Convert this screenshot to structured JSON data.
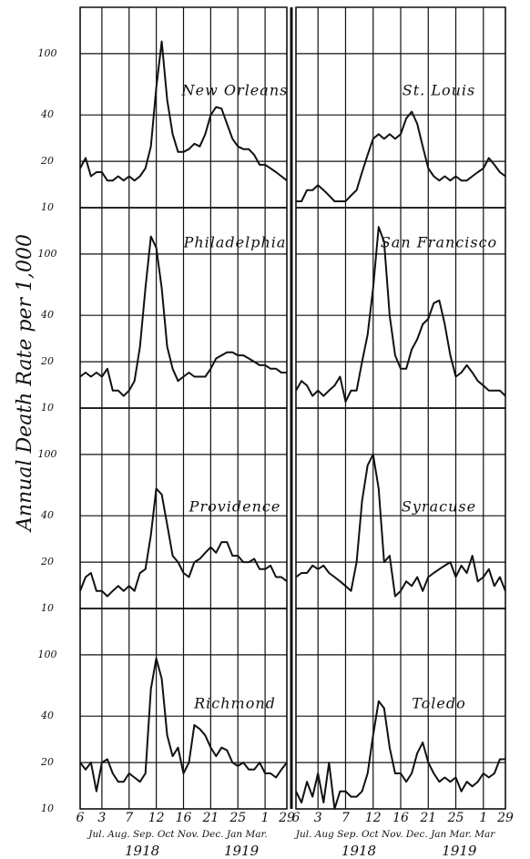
{
  "figure": {
    "ylabel": "Annual Death Rate per 1,000",
    "x_month_labels": [
      "Jul. Aug. Sep. Oct Nov. Dec. Jan Mar.",
      "Jul. Aug Sep. Oct Nov. Dec. Jan Mar. Mar"
    ],
    "years": [
      [
        "1918",
        "1919"
      ],
      [
        "1918",
        "1919"
      ]
    ]
  },
  "chart_data": [
    {
      "type": "line",
      "title": "New Orleans",
      "log_scale": true,
      "x": [
        0,
        1,
        2,
        3,
        4,
        5,
        6,
        7,
        8,
        9,
        10,
        11,
        12,
        13,
        14,
        15,
        16,
        17,
        18,
        19,
        20,
        21,
        22,
        23,
        24,
        25,
        26,
        27,
        28,
        29,
        30,
        31,
        32,
        33,
        34,
        35,
        36,
        37,
        38
      ],
      "values": [
        18,
        21,
        16,
        17,
        17,
        15,
        15,
        16,
        15,
        16,
        15,
        16,
        18,
        25,
        60,
        120,
        50,
        30,
        23,
        23,
        24,
        26,
        25,
        30,
        40,
        45,
        44,
        35,
        28,
        25,
        24,
        24,
        22,
        19,
        19,
        18,
        17,
        16,
        15
      ],
      "xlim": [
        0,
        38
      ],
      "ylim": [
        10,
        200
      ],
      "yticks": [
        10,
        20,
        40,
        100
      ],
      "xticks": [
        {
          "value": 0,
          "label": "6"
        },
        {
          "value": 4,
          "label": "3"
        },
        {
          "value": 9,
          "label": "7"
        },
        {
          "value": 14,
          "label": "12"
        },
        {
          "value": 19,
          "label": "16"
        },
        {
          "value": 24,
          "label": "21"
        },
        {
          "value": 29,
          "label": "25"
        },
        {
          "value": 34,
          "label": "1"
        },
        {
          "value": 38,
          "label": "29"
        }
      ]
    },
    {
      "type": "line",
      "title": "St. Louis",
      "log_scale": true,
      "x": [
        0,
        1,
        2,
        3,
        4,
        5,
        6,
        7,
        8,
        9,
        10,
        11,
        12,
        13,
        14,
        15,
        16,
        17,
        18,
        19,
        20,
        21,
        22,
        23,
        24,
        25,
        26,
        27,
        28,
        29,
        30,
        31,
        32,
        33,
        34,
        35,
        36,
        37,
        38
      ],
      "values": [
        11,
        11,
        13,
        13,
        14,
        13,
        12,
        11,
        11,
        11,
        12,
        13,
        17,
        22,
        28,
        30,
        28,
        30,
        28,
        30,
        38,
        42,
        35,
        25,
        18,
        16,
        15,
        16,
        15,
        16,
        15,
        15,
        16,
        17,
        18,
        21,
        19,
        17,
        16
      ],
      "xlim": [
        0,
        38
      ],
      "ylim": [
        10,
        200
      ],
      "yticks": [
        10,
        20,
        40,
        100
      ],
      "xticks": [
        {
          "value": 0,
          "label": "6"
        },
        {
          "value": 4,
          "label": "3"
        },
        {
          "value": 9,
          "label": "7"
        },
        {
          "value": 14,
          "label": "12"
        },
        {
          "value": 19,
          "label": "16"
        },
        {
          "value": 24,
          "label": "21"
        },
        {
          "value": 29,
          "label": "25"
        },
        {
          "value": 34,
          "label": "1"
        },
        {
          "value": 38,
          "label": "29"
        }
      ]
    },
    {
      "type": "line",
      "title": "Philadelphia",
      "log_scale": true,
      "x": [
        0,
        1,
        2,
        3,
        4,
        5,
        6,
        7,
        8,
        9,
        10,
        11,
        12,
        13,
        14,
        15,
        16,
        17,
        18,
        19,
        20,
        21,
        22,
        23,
        24,
        25,
        26,
        27,
        28,
        29,
        30,
        31,
        32,
        33,
        34,
        35,
        36,
        37,
        38
      ],
      "values": [
        16,
        17,
        16,
        17,
        16,
        18,
        13,
        13,
        12,
        13,
        15,
        25,
        60,
        130,
        110,
        60,
        25,
        18,
        15,
        16,
        17,
        16,
        16,
        16,
        18,
        21,
        22,
        23,
        23,
        22,
        22,
        21,
        20,
        19,
        19,
        18,
        18,
        17,
        17
      ],
      "xlim": [
        0,
        38
      ],
      "ylim": [
        10,
        200
      ],
      "yticks": [
        10,
        20,
        40,
        100
      ],
      "xticks": [
        {
          "value": 0,
          "label": "6"
        },
        {
          "value": 4,
          "label": "3"
        },
        {
          "value": 9,
          "label": "7"
        },
        {
          "value": 14,
          "label": "12"
        },
        {
          "value": 19,
          "label": "16"
        },
        {
          "value": 24,
          "label": "21"
        },
        {
          "value": 29,
          "label": "25"
        },
        {
          "value": 34,
          "label": "1"
        },
        {
          "value": 38,
          "label": "29"
        }
      ]
    },
    {
      "type": "line",
      "title": "San Francisco",
      "log_scale": true,
      "x": [
        0,
        1,
        2,
        3,
        4,
        5,
        6,
        7,
        8,
        9,
        10,
        11,
        12,
        13,
        14,
        15,
        16,
        17,
        18,
        19,
        20,
        21,
        22,
        23,
        24,
        25,
        26,
        27,
        28,
        29,
        30,
        31,
        32,
        33,
        34,
        35,
        36,
        37,
        38
      ],
      "values": [
        13,
        15,
        14,
        12,
        13,
        12,
        13,
        14,
        16,
        11,
        13,
        13,
        20,
        30,
        60,
        150,
        120,
        40,
        22,
        18,
        18,
        24,
        28,
        35,
        38,
        48,
        50,
        35,
        22,
        16,
        17,
        19,
        17,
        15,
        14,
        13,
        13,
        13,
        12
      ],
      "xlim": [
        0,
        38
      ],
      "ylim": [
        10,
        200
      ],
      "yticks": [
        10,
        20,
        40,
        100
      ],
      "xticks": [
        {
          "value": 0,
          "label": "6"
        },
        {
          "value": 4,
          "label": "3"
        },
        {
          "value": 9,
          "label": "7"
        },
        {
          "value": 14,
          "label": "12"
        },
        {
          "value": 19,
          "label": "16"
        },
        {
          "value": 24,
          "label": "21"
        },
        {
          "value": 29,
          "label": "25"
        },
        {
          "value": 34,
          "label": "1"
        },
        {
          "value": 38,
          "label": "29"
        }
      ]
    },
    {
      "type": "line",
      "title": "Providence",
      "log_scale": true,
      "x": [
        0,
        1,
        2,
        3,
        4,
        5,
        6,
        7,
        8,
        9,
        10,
        11,
        12,
        13,
        14,
        15,
        16,
        17,
        18,
        19,
        20,
        21,
        22,
        23,
        24,
        25,
        26,
        27,
        28,
        29,
        30,
        31,
        32,
        33,
        34,
        35,
        36,
        37,
        38
      ],
      "values": [
        13,
        16,
        17,
        13,
        13,
        12,
        13,
        14,
        13,
        14,
        13,
        17,
        18,
        30,
        60,
        55,
        35,
        22,
        20,
        17,
        16,
        20,
        21,
        23,
        25,
        23,
        27,
        27,
        22,
        22,
        20,
        20,
        21,
        18,
        18,
        19,
        16,
        16,
        15
      ],
      "xlim": [
        0,
        38
      ],
      "ylim": [
        10,
        200
      ],
      "yticks": [
        10,
        20,
        40,
        100
      ],
      "xticks": [
        {
          "value": 0,
          "label": "6"
        },
        {
          "value": 4,
          "label": "3"
        },
        {
          "value": 9,
          "label": "7"
        },
        {
          "value": 14,
          "label": "12"
        },
        {
          "value": 19,
          "label": "16"
        },
        {
          "value": 24,
          "label": "21"
        },
        {
          "value": 29,
          "label": "25"
        },
        {
          "value": 34,
          "label": "1"
        },
        {
          "value": 38,
          "label": "29"
        }
      ]
    },
    {
      "type": "line",
      "title": "Syracuse",
      "log_scale": true,
      "x": [
        0,
        1,
        2,
        3,
        4,
        5,
        6,
        7,
        8,
        9,
        10,
        11,
        12,
        13,
        14,
        15,
        16,
        17,
        18,
        19,
        20,
        21,
        22,
        23,
        24,
        25,
        26,
        27,
        28,
        29,
        30,
        31,
        32,
        33,
        34,
        35,
        36,
        37,
        38
      ],
      "values": [
        16,
        17,
        17,
        19,
        18,
        19,
        17,
        16,
        15,
        14,
        13,
        20,
        50,
        85,
        100,
        60,
        20,
        22,
        12,
        13,
        15,
        14,
        16,
        13,
        16,
        17,
        18,
        19,
        20,
        16,
        19,
        17,
        22,
        15,
        16,
        18,
        14,
        16,
        13
      ],
      "xlim": [
        0,
        38
      ],
      "ylim": [
        10,
        200
      ],
      "yticks": [
        10,
        20,
        40,
        100
      ],
      "xticks": [
        {
          "value": 0,
          "label": "6"
        },
        {
          "value": 4,
          "label": "3"
        },
        {
          "value": 9,
          "label": "7"
        },
        {
          "value": 14,
          "label": "12"
        },
        {
          "value": 19,
          "label": "16"
        },
        {
          "value": 24,
          "label": "21"
        },
        {
          "value": 29,
          "label": "25"
        },
        {
          "value": 34,
          "label": "1"
        },
        {
          "value": 38,
          "label": "29"
        }
      ]
    },
    {
      "type": "line",
      "title": "Richmond",
      "log_scale": true,
      "x": [
        0,
        1,
        2,
        3,
        4,
        5,
        6,
        7,
        8,
        9,
        10,
        11,
        12,
        13,
        14,
        15,
        16,
        17,
        18,
        19,
        20,
        21,
        22,
        23,
        24,
        25,
        26,
        27,
        28,
        29,
        30,
        31,
        32,
        33,
        34,
        35,
        36,
        37,
        38
      ],
      "values": [
        20,
        18,
        20,
        13,
        20,
        21,
        17,
        15,
        15,
        17,
        16,
        15,
        17,
        60,
        95,
        70,
        30,
        22,
        25,
        17,
        20,
        35,
        33,
        30,
        25,
        22,
        25,
        24,
        20,
        19,
        20,
        18,
        18,
        20,
        17,
        17,
        16,
        18,
        20
      ],
      "xlim": [
        0,
        38
      ],
      "ylim": [
        10,
        200
      ],
      "yticks": [
        10,
        20,
        40,
        100
      ],
      "xticks": [
        {
          "value": 0,
          "label": "6"
        },
        {
          "value": 4,
          "label": "3"
        },
        {
          "value": 9,
          "label": "7"
        },
        {
          "value": 14,
          "label": "12"
        },
        {
          "value": 19,
          "label": "16"
        },
        {
          "value": 24,
          "label": "21"
        },
        {
          "value": 29,
          "label": "25"
        },
        {
          "value": 34,
          "label": "1"
        },
        {
          "value": 38,
          "label": "29"
        }
      ]
    },
    {
      "type": "line",
      "title": "Toledo",
      "log_scale": true,
      "x": [
        0,
        1,
        2,
        3,
        4,
        5,
        6,
        7,
        8,
        9,
        10,
        11,
        12,
        13,
        14,
        15,
        16,
        17,
        18,
        19,
        20,
        21,
        22,
        23,
        24,
        25,
        26,
        27,
        28,
        29,
        30,
        31,
        32,
        33,
        34,
        35,
        36,
        37,
        38
      ],
      "values": [
        13,
        11,
        15,
        12,
        17,
        11,
        20,
        10,
        13,
        13,
        12,
        12,
        13,
        17,
        30,
        50,
        45,
        25,
        17,
        17,
        15,
        17,
        23,
        27,
        20,
        17,
        15,
        16,
        15,
        16,
        13,
        15,
        14,
        15,
        17,
        16,
        17,
        21,
        21
      ],
      "xlim": [
        0,
        38
      ],
      "ylim": [
        10,
        200
      ],
      "yticks": [
        10,
        20,
        40,
        100
      ],
      "xticks": [
        {
          "value": 0,
          "label": "6"
        },
        {
          "value": 4,
          "label": "3"
        },
        {
          "value": 9,
          "label": "7"
        },
        {
          "value": 14,
          "label": "12"
        },
        {
          "value": 19,
          "label": "16"
        },
        {
          "value": 24,
          "label": "21"
        },
        {
          "value": 29,
          "label": "25"
        },
        {
          "value": 34,
          "label": "1"
        },
        {
          "value": 38,
          "label": "29"
        }
      ]
    }
  ]
}
